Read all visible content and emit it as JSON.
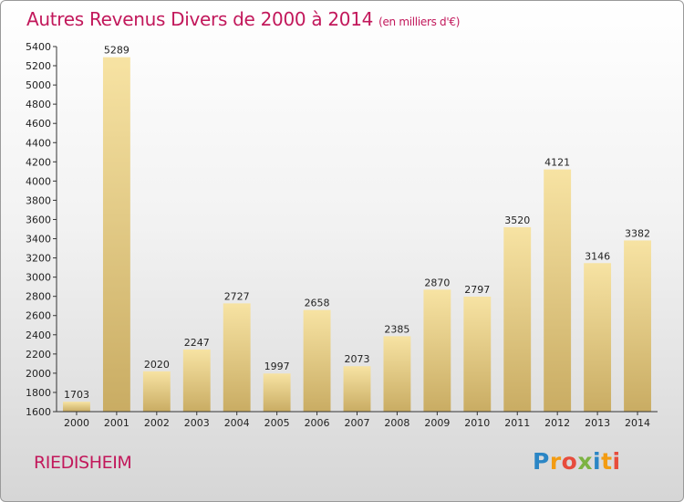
{
  "header": {
    "title": "Autres Revenus Divers de 2000 à 2014",
    "unit": "(en milliers d'€)"
  },
  "footer": {
    "place": "RIEDISHEIM",
    "logo_letters": [
      "P",
      "r",
      "o",
      "x",
      "i",
      "t",
      "i"
    ],
    "logo_colors": [
      "#2b86c5",
      "#f39c12",
      "#e74c3c",
      "#7cb342",
      "#2b86c5",
      "#f39c12",
      "#e74c3c"
    ]
  },
  "chart_data": {
    "type": "bar",
    "title": "Autres Revenus Divers de 2000 à 2014",
    "subtitle": "(en milliers d'€)",
    "xlabel": "",
    "ylabel": "",
    "categories": [
      "2000",
      "2001",
      "2002",
      "2003",
      "2004",
      "2005",
      "2006",
      "2007",
      "2008",
      "2009",
      "2010",
      "2011",
      "2012",
      "2013",
      "2014"
    ],
    "values": [
      1703,
      5289,
      2020,
      2247,
      2727,
      1997,
      2658,
      2073,
      2385,
      2870,
      2797,
      3520,
      4121,
      3146,
      3382
    ],
    "ylim": [
      1600,
      5400
    ],
    "yticks": [
      1600,
      1800,
      2000,
      2200,
      2400,
      2600,
      2800,
      3000,
      3200,
      3400,
      3600,
      3800,
      4000,
      4200,
      4400,
      4600,
      4800,
      5000,
      5200,
      5400
    ],
    "grid": false,
    "bar_color_light": "#f7e3a3",
    "bar_color_dark": "#c9ac63"
  }
}
